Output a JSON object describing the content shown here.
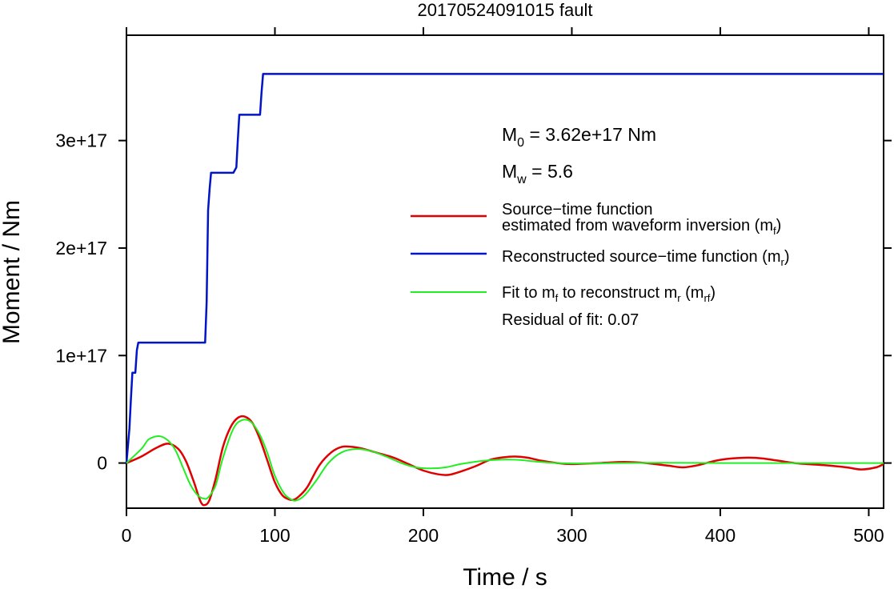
{
  "chart_data": {
    "type": "line",
    "title": "20170524091015 fault",
    "xlabel": "Time / s",
    "ylabel": "Moment / Nm",
    "xlim": [
      0,
      510
    ],
    "ylim": [
      -4.2e+16,
      3.98e+17
    ],
    "x_ticks": [
      0,
      100,
      200,
      300,
      400,
      500
    ],
    "x_tick_labels": [
      "0",
      "100",
      "200",
      "300",
      "400",
      "500"
    ],
    "y_ticks": [
      0,
      1e+17,
      2e+17,
      3e+17
    ],
    "y_tick_labels": [
      "0",
      "1e+17",
      "2e+17",
      "3e+17"
    ],
    "grid": false,
    "legend_position": "right",
    "annotations": {
      "m0": {
        "prefix": "M",
        "sub": "0",
        "rest": " = 3.62e+17 Nm"
      },
      "mw": {
        "prefix": "M",
        "sub": "w",
        "rest": " = 5.6"
      },
      "residual": "Residual of fit: 0.07"
    },
    "legend": [
      {
        "line1": "Source−time function",
        "line2_prefix": "estimated from waveform inversion (m",
        "line2_sub": "f",
        "line2_suffix": ")",
        "color": "#e00000"
      },
      {
        "line1_prefix": "Reconstructed source−time function (m",
        "line1_sub": "r",
        "line1_suffix": ")",
        "color": "#0014c8"
      },
      {
        "t1": "Fit to m",
        "s1": "f",
        "t2": " to reconstruct m",
        "s2": "r",
        "t3": " (m",
        "s3": "rf",
        "t4": ")",
        "color": "#22ee22"
      }
    ],
    "series": [
      {
        "key": "mr",
        "color": "#0014c8",
        "x": [
          0,
          2,
          3,
          4,
          5,
          6,
          7,
          8,
          9,
          10,
          53,
          54,
          55,
          56,
          57,
          58,
          72,
          74,
          75,
          76,
          77,
          90,
          91,
          92,
          510
        ],
        "y": [
          0,
          3.2e+16,
          6e+16,
          8.4e+16,
          8.4e+16,
          8.4e+16,
          1.05e+17,
          1.12e+17,
          1.12e+17,
          1.12e+17,
          1.12e+17,
          1.5e+17,
          2.35e+17,
          2.55e+17,
          2.7e+17,
          2.7e+17,
          2.7e+17,
          2.75e+17,
          3e+17,
          3.24e+17,
          3.24e+17,
          3.24e+17,
          3.45e+17,
          3.62e+17,
          3.62e+17
        ]
      },
      {
        "key": "mf",
        "color": "#e00000",
        "x": [
          0,
          10,
          20,
          28,
          35,
          40,
          45,
          50,
          53,
          56,
          60,
          65,
          70,
          75,
          80,
          85,
          90,
          95,
          100,
          105,
          110,
          113,
          117,
          122,
          130,
          138,
          145,
          152,
          160,
          170,
          180,
          190,
          200,
          210,
          217,
          225,
          235,
          245,
          255,
          262,
          270,
          280,
          290,
          300,
          320,
          335,
          350,
          365,
          375,
          385,
          400,
          418,
          430,
          450,
          470,
          485,
          495,
          505,
          510
        ],
        "y": [
          0,
          6000000000000000.0,
          1.4e+16,
          1.8e+16,
          1.3e+16,
          2000000000000000.0,
          -1.6e+16,
          -3.6e+16,
          -3.9e+16,
          -3.4e+16,
          -1.5e+16,
          1.5e+16,
          3.3e+16,
          4.2e+16,
          4.3e+16,
          3.7e+16,
          2.2e+16,
          2000000000000000.0,
          -1.8e+16,
          -3e+16,
          -3.4e+16,
          -3.4e+16,
          -3e+16,
          -2.2e+16,
          -2000000000000000.0,
          1e+16,
          1.5e+16,
          1.5e+16,
          1.3e+16,
          9000000000000000.0,
          5000000000000000.0,
          -1000000000000000.0,
          -7000000000000000.0,
          -1.05e+16,
          -1.1e+16,
          -8000000000000000.0,
          -3000000000000000.0,
          3000000000000000.0,
          5500000000000000.0,
          6000000000000000.0,
          5000000000000000.0,
          2000000000000000.0,
          0,
          -1000000000000000.0,
          0,
          1000000000000000.0,
          0,
          -2500000000000000.0,
          -4000000000000000.0,
          -2000000000000000.0,
          3000000000000000.0,
          5000000000000000.0,
          4000000000000000.0,
          0,
          -2000000000000000.0,
          -4000000000000000.0,
          -6000000000000000.0,
          -4000000000000000.0,
          -1000000000000000.0
        ]
      },
      {
        "key": "mrf",
        "color": "#22ee22",
        "x": [
          0,
          10,
          15,
          22,
          28,
          33,
          38,
          43,
          48,
          52,
          55,
          60,
          65,
          72,
          78,
          84,
          90,
          95,
          100,
          106,
          110,
          114,
          120,
          128,
          136,
          145,
          155,
          165,
          175,
          185,
          195,
          205,
          215,
          225,
          240,
          255,
          265,
          275,
          290,
          310,
          330,
          360,
          400,
          450,
          510
        ],
        "y": [
          0,
          1.3e+16,
          2.2e+16,
          2.5e+16,
          2.1e+16,
          1.2e+16,
          -4000000000000000.0,
          -2e+16,
          -3e+16,
          -3.3e+16,
          -3.2e+16,
          -2.1e+16,
          5000000000000000.0,
          3.2e+16,
          4e+16,
          3.8e+16,
          2.6e+16,
          9000000000000000.0,
          -1.2e+16,
          -2.8e+16,
          -3.3e+16,
          -3.5e+16,
          -3e+16,
          -1.6e+16,
          0,
          1e+16,
          1.3e+16,
          1.1e+16,
          6000000000000000.0,
          0,
          -4000000000000000.0,
          -5000000000000000.0,
          -4000000000000000.0,
          -1000000000000000.0,
          2000000000000000.0,
          3200000000000000.0,
          2800000000000000.0,
          1500000000000000.0,
          0,
          -500000000000000.0,
          0,
          300000000000000.0,
          0,
          0,
          0
        ]
      }
    ]
  }
}
